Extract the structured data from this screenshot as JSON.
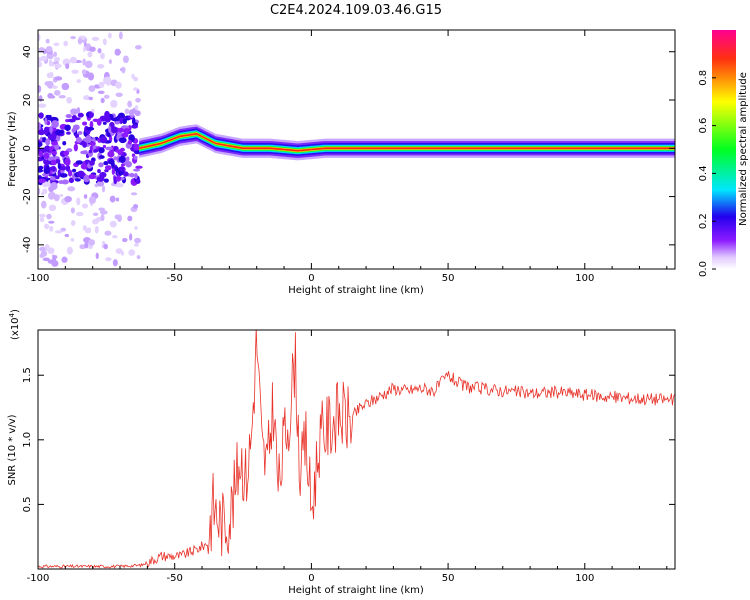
{
  "title": "C2E4.2024.109.03.46.G15",
  "chart_data": [
    {
      "type": "heatmap",
      "description_of_content": "spectrogram",
      "xlabel": "Height of straight line (km)",
      "ylabel": "Frequency (Hz)",
      "xlim": [
        -100,
        133
      ],
      "ylim": [
        -50,
        49
      ],
      "x_ticks": [
        -100,
        -50,
        0,
        50,
        100
      ],
      "x_tick_labels": [
        "-100",
        "-50",
        "0",
        "50",
        "100"
      ],
      "y_ticks": [
        -40,
        -20,
        0,
        20,
        40
      ],
      "y_tick_labels": [
        "-40",
        "-20",
        "0",
        "20",
        "40"
      ],
      "colorbar": {
        "label": "Normalized spectral amplitude",
        "range": [
          0,
          1
        ],
        "ticks": [
          0.0,
          0.2,
          0.4,
          0.6,
          0.8
        ],
        "tick_labels": [
          "0.0",
          "0.2",
          "0.4",
          "0.6",
          "0.8"
        ],
        "colors": [
          "#ffffff",
          "#e0c8ff",
          "#8c1aff",
          "#2200ee",
          "#00e6ff",
          "#00ff20",
          "#ffff00",
          "#ff3010",
          "#ff0090"
        ]
      },
      "features": {
        "noise_region_x": [
          -100,
          -63
        ],
        "signal_line": [
          {
            "x": -63,
            "f": 0
          },
          {
            "x": -55,
            "f": 2
          },
          {
            "x": -48,
            "f": 5
          },
          {
            "x": -42,
            "f": 6
          },
          {
            "x": -35,
            "f": 2
          },
          {
            "x": -25,
            "f": 0
          },
          {
            "x": -15,
            "f": 0
          },
          {
            "x": -5,
            "f": -1
          },
          {
            "x": 5,
            "f": 0
          },
          {
            "x": 15,
            "f": 0
          },
          {
            "x": 133,
            "f": 0
          }
        ]
      }
    },
    {
      "type": "line",
      "xlabel": "Height of straight line (km)",
      "ylabel": "SNR (10 * v/v)",
      "y_exponent_label": "(x10",
      "y_exponent_power": "4",
      "y_exponent_close": ")",
      "xlim": [
        -100,
        133
      ],
      "ylim": [
        0,
        1.85
      ],
      "x_ticks": [
        -100,
        -50,
        0,
        50,
        100
      ],
      "x_tick_labels": [
        "-100",
        "-50",
        "0",
        "50",
        "100"
      ],
      "y_ticks": [
        0.5,
        1.0,
        1.5
      ],
      "y_tick_labels": [
        "0.5",
        "1.0",
        "1.5"
      ],
      "series": [
        {
          "color": "#e8332a",
          "points": [
            [
              -100,
              0.02
            ],
            [
              -90,
              0.02
            ],
            [
              -80,
              0.02
            ],
            [
              -70,
              0.02
            ],
            [
              -62,
              0.03
            ],
            [
              -55,
              0.1
            ],
            [
              -48,
              0.1
            ],
            [
              -42,
              0.15
            ],
            [
              -38,
              0.2
            ],
            [
              -36,
              0.5
            ],
            [
              -33,
              0.35
            ],
            [
              -30,
              0.4
            ],
            [
              -28,
              0.6
            ],
            [
              -26,
              0.9
            ],
            [
              -24,
              0.7
            ],
            [
              -22,
              1.0
            ],
            [
              -20,
              1.8
            ],
            [
              -18,
              0.9
            ],
            [
              -16,
              0.8
            ],
            [
              -14,
              1.3
            ],
            [
              -12,
              0.6
            ],
            [
              -10,
              1.0
            ],
            [
              -8,
              1.2
            ],
            [
              -6,
              1.65
            ],
            [
              -4,
              0.7
            ],
            [
              -2,
              1.0
            ],
            [
              0,
              0.45
            ],
            [
              3,
              1.0
            ],
            [
              6,
              1.1
            ],
            [
              10,
              1.2
            ],
            [
              14,
              1.15
            ],
            [
              18,
              1.25
            ],
            [
              22,
              1.3
            ],
            [
              26,
              1.35
            ],
            [
              30,
              1.4
            ],
            [
              35,
              1.38
            ],
            [
              40,
              1.4
            ],
            [
              45,
              1.38
            ],
            [
              50,
              1.5
            ],
            [
              55,
              1.42
            ],
            [
              60,
              1.4
            ],
            [
              70,
              1.38
            ],
            [
              80,
              1.36
            ],
            [
              90,
              1.37
            ],
            [
              100,
              1.35
            ],
            [
              110,
              1.33
            ],
            [
              120,
              1.32
            ],
            [
              133,
              1.31
            ]
          ]
        }
      ]
    }
  ]
}
